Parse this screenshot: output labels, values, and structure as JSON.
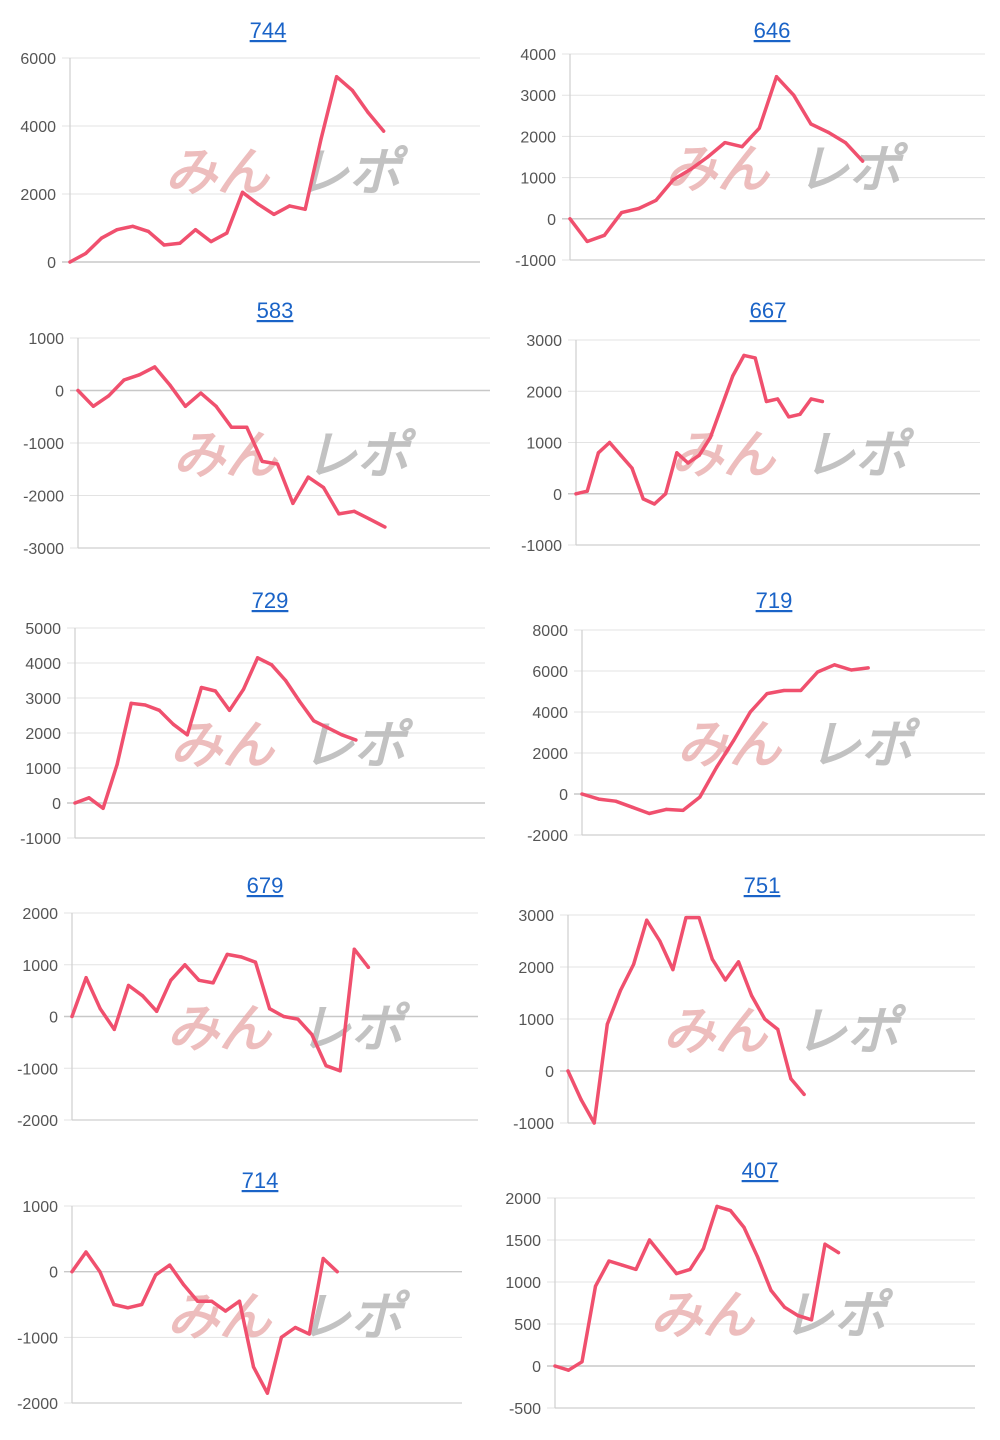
{
  "colors": {
    "line": "#f0506e",
    "title_link": "#1a63c7"
  },
  "watermark": {
    "left": "みん",
    "right": "レポ"
  },
  "chart_data": [
    {
      "type": "line",
      "title": "744",
      "ylim": [
        0,
        6000
      ],
      "yticks": [
        0,
        2000,
        4000,
        6000
      ],
      "values": [
        0,
        250,
        700,
        950,
        1050,
        900,
        500,
        550,
        950,
        600,
        850,
        2050,
        1700,
        1400,
        1650,
        1550,
        3600,
        5450,
        5050,
        4400,
        3850
      ]
    },
    {
      "type": "line",
      "title": "646",
      "ylim": [
        -1000,
        4000
      ],
      "yticks": [
        -1000,
        0,
        1000,
        2000,
        3000,
        4000
      ],
      "values": [
        0,
        -550,
        -400,
        150,
        250,
        450,
        950,
        1200,
        1500,
        1850,
        1750,
        2200,
        3450,
        3000,
        2300,
        2100,
        1850,
        1400
      ]
    },
    {
      "type": "line",
      "title": "583",
      "ylim": [
        -3000,
        1000
      ],
      "yticks": [
        -3000,
        -2000,
        -1000,
        0,
        1000
      ],
      "values": [
        0,
        -300,
        -100,
        200,
        300,
        450,
        100,
        -300,
        -50,
        -300,
        -700,
        -700,
        -1350,
        -1400,
        -2150,
        -1650,
        -1850,
        -2350,
        -2300,
        -2450,
        -2600
      ]
    },
    {
      "type": "line",
      "title": "667",
      "ylim": [
        -1000,
        3000
      ],
      "yticks": [
        -1000,
        0,
        1000,
        2000,
        3000
      ],
      "values": [
        0,
        50,
        800,
        1000,
        750,
        500,
        -100,
        -200,
        0,
        800,
        600,
        750,
        1100,
        1700,
        2300,
        2700,
        2650,
        1800,
        1850,
        1500,
        1550,
        1850,
        1800
      ]
    },
    {
      "type": "line",
      "title": "729",
      "ylim": [
        -1000,
        5000
      ],
      "yticks": [
        -1000,
        0,
        1000,
        2000,
        3000,
        4000,
        5000
      ],
      "values": [
        0,
        150,
        -150,
        1100,
        2850,
        2800,
        2650,
        2250,
        1950,
        3300,
        3200,
        2650,
        3250,
        4150,
        3950,
        3500,
        2900,
        2350,
        2150,
        1950,
        1800
      ]
    },
    {
      "type": "line",
      "title": "719",
      "ylim": [
        -2000,
        8000
      ],
      "yticks": [
        -2000,
        0,
        2000,
        4000,
        6000,
        8000
      ],
      "values": [
        0,
        -250,
        -350,
        -650,
        -950,
        -750,
        -800,
        -150,
        1300,
        2600,
        4000,
        4900,
        5050,
        5050,
        5950,
        6300,
        6050,
        6150
      ]
    },
    {
      "type": "line",
      "title": "679",
      "ylim": [
        -2000,
        2000
      ],
      "yticks": [
        -2000,
        -1000,
        0,
        1000,
        2000
      ],
      "values": [
        0,
        750,
        150,
        -250,
        600,
        400,
        100,
        700,
        1000,
        700,
        650,
        1200,
        1150,
        1050,
        150,
        0,
        -50,
        -350,
        -950,
        -1050,
        1300,
        950
      ]
    },
    {
      "type": "line",
      "title": "751",
      "ylim": [
        -1000,
        3000
      ],
      "yticks": [
        -1000,
        0,
        1000,
        2000,
        3000
      ],
      "values": [
        0,
        -550,
        -1000,
        900,
        1550,
        2050,
        2900,
        2500,
        1950,
        2950,
        2950,
        2150,
        1750,
        2100,
        1450,
        1000,
        800,
        -150,
        -450
      ]
    },
    {
      "type": "line",
      "title": "714",
      "ylim": [
        -2000,
        1000
      ],
      "yticks": [
        -2000,
        -1000,
        0,
        1000
      ],
      "values": [
        0,
        300,
        0,
        -500,
        -550,
        -500,
        -50,
        100,
        -200,
        -450,
        -450,
        -600,
        -450,
        -1450,
        -1850,
        -1000,
        -850,
        -950,
        200,
        0
      ]
    },
    {
      "type": "line",
      "title": "407",
      "ylim": [
        -500,
        2000
      ],
      "yticks": [
        -500,
        0,
        500,
        1000,
        1500,
        2000
      ],
      "values": [
        0,
        -50,
        50,
        950,
        1250,
        1200,
        1150,
        1500,
        1300,
        1100,
        1150,
        1400,
        1900,
        1850,
        1650,
        1300,
        900,
        700,
        600,
        550,
        1450,
        1350
      ]
    }
  ]
}
